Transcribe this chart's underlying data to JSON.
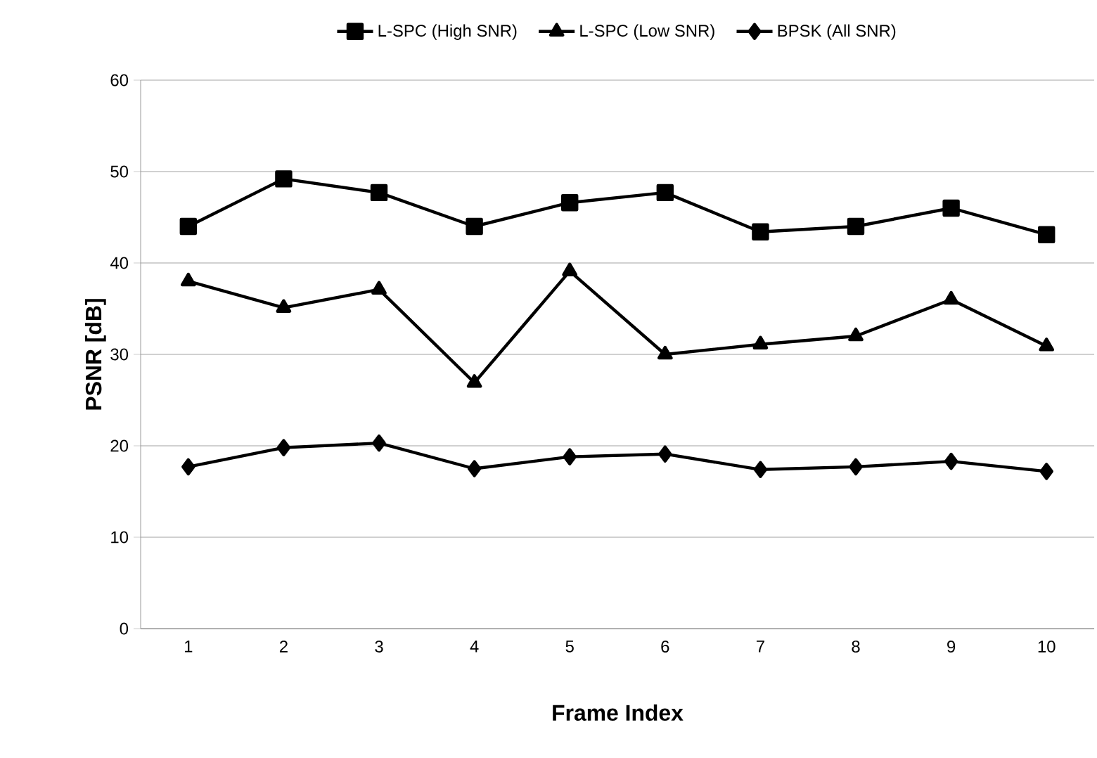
{
  "chart_data": {
    "type": "line",
    "xlabel": "Frame Index",
    "ylabel": "PSNR [dB]",
    "categories": [
      "1",
      "2",
      "3",
      "4",
      "5",
      "6",
      "7",
      "8",
      "9",
      "10"
    ],
    "series": [
      {
        "name": "L-SPC (High SNR)",
        "color": "#000000",
        "marker": "square",
        "values": [
          44.0,
          49.2,
          47.7,
          44.0,
          46.6,
          47.7,
          43.4,
          44.0,
          46.0,
          43.1
        ]
      },
      {
        "name": "L-SPC (Low SNR)",
        "color": "#000000",
        "marker": "triangle",
        "values": [
          38.0,
          35.1,
          37.1,
          26.9,
          39.1,
          30.0,
          31.1,
          32.0,
          36.0,
          30.9
        ]
      },
      {
        "name": "BPSK (All SNR)",
        "color": "#000000",
        "marker": "diamond",
        "values": [
          17.7,
          19.8,
          20.3,
          17.5,
          18.8,
          19.1,
          17.4,
          17.7,
          18.3,
          17.2
        ]
      }
    ],
    "ylim": [
      0,
      60
    ],
    "yticks": [
      0,
      10,
      20,
      30,
      40,
      50,
      60
    ],
    "grid": "y",
    "legend": "top",
    "line_style": "solid"
  }
}
